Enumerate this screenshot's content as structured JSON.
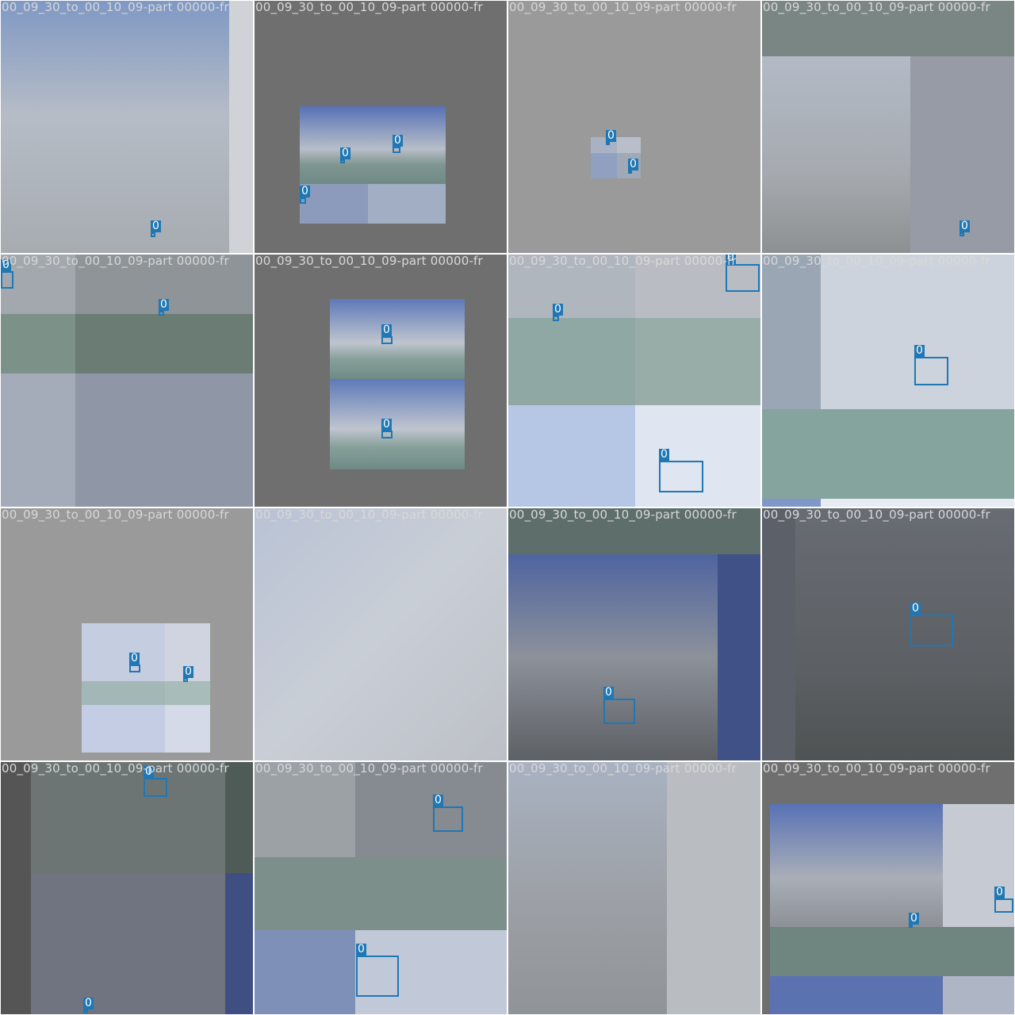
{
  "filename": "00_09_30_to_00_10_09-part 00000-fr",
  "class_label": "0",
  "colors": {
    "box": "#1f77b4",
    "label_text": "#ffffff",
    "filename_text": "#d8d8d8",
    "gap": "#ffffff"
  },
  "tiles": [
    {
      "id": "t1",
      "detections": [
        {
          "icon": "small-drone-icon"
        }
      ]
    },
    {
      "id": "t2",
      "detections": [
        {
          "icon": "small-drone-icon"
        },
        {
          "icon": "small-drone-icon"
        },
        {
          "icon": "small-drone-icon"
        }
      ]
    },
    {
      "id": "t3",
      "detections": [
        {
          "icon": "small-drone-icon"
        },
        {
          "icon": "small-drone-icon"
        }
      ]
    },
    {
      "id": "t4",
      "detections": [
        {
          "icon": "small-drone-icon"
        }
      ]
    },
    {
      "id": "t5",
      "detections": [
        {
          "icon": "small-drone-icon"
        },
        {
          "icon": "small-drone-icon"
        }
      ]
    },
    {
      "id": "t6",
      "detections": [
        {
          "icon": "small-drone-icon"
        },
        {
          "icon": "small-drone-icon"
        }
      ]
    },
    {
      "id": "t7",
      "detections": [
        {
          "icon": "small-drone-icon"
        },
        {
          "icon": "quadcopter-drone-icon"
        },
        {
          "icon": "quadcopter-drone-icon"
        }
      ]
    },
    {
      "id": "t8",
      "detections": [
        {
          "icon": "quadcopter-drone-icon"
        }
      ]
    },
    {
      "id": "t9",
      "detections": [
        {
          "icon": "small-drone-icon"
        },
        {
          "icon": "small-drone-icon"
        }
      ]
    },
    {
      "id": "t10",
      "detections": []
    },
    {
      "id": "t11",
      "detections": [
        {
          "icon": "quadcopter-drone-icon"
        }
      ]
    },
    {
      "id": "t12",
      "detections": [
        {
          "icon": "quadcopter-drone-icon"
        }
      ]
    },
    {
      "id": "t13",
      "detections": [
        {
          "icon": "quadcopter-drone-icon"
        },
        {
          "icon": "small-drone-icon"
        }
      ]
    },
    {
      "id": "t14",
      "detections": [
        {
          "icon": "quadcopter-drone-icon"
        },
        {
          "icon": "quadcopter-drone-icon"
        }
      ]
    },
    {
      "id": "t15",
      "detections": []
    },
    {
      "id": "t16",
      "detections": [
        {
          "icon": "small-drone-icon"
        },
        {
          "icon": "small-drone-icon"
        }
      ]
    }
  ]
}
